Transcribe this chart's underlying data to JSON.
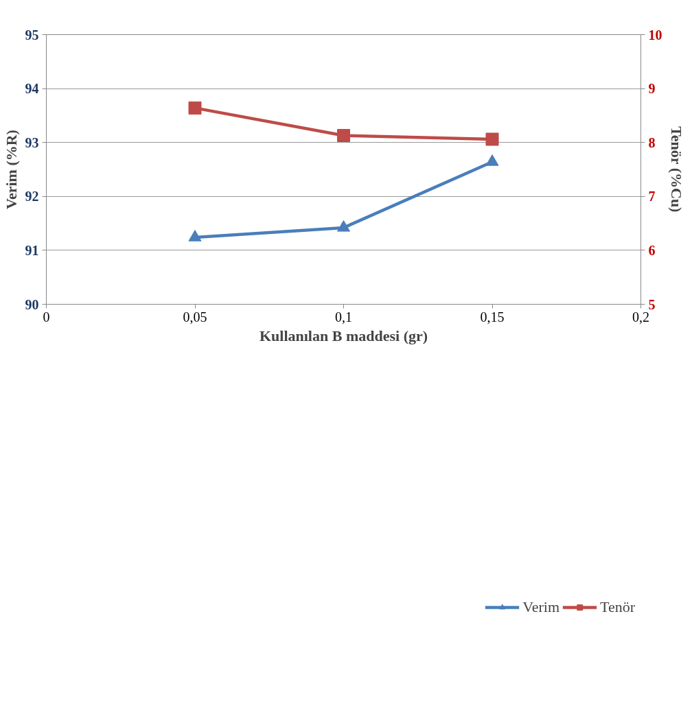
{
  "chart_data": {
    "type": "line",
    "xlabel": "Kullanılan B maddesi (gr)",
    "ylabel": "Verim (%R)",
    "y2label": "Tenör (%Cu)",
    "x": [
      0.05,
      0.1,
      0.15
    ],
    "series": [
      {
        "name": "Verim",
        "color": "#4a7ebb",
        "values": [
          91.24,
          91.42,
          92.64
        ],
        "marker": "triangle"
      },
      {
        "name": "Tenör",
        "color": "#be4b48",
        "values": [
          8.64,
          8.13,
          8.06
        ],
        "marker": "square",
        "axis": "y2"
      }
    ],
    "xlim": [
      0,
      0.2
    ],
    "xticks": [
      {
        "value": 0,
        "label": "0"
      },
      {
        "value": 0.05,
        "label": "0,05"
      },
      {
        "value": 0.1,
        "label": "0,1"
      },
      {
        "value": 0.15,
        "label": "0,15"
      },
      {
        "value": 0.2,
        "label": "0,2"
      }
    ],
    "ylim": [
      90,
      95
    ],
    "yticks": [
      90,
      91,
      92,
      93,
      94,
      95
    ],
    "y2lim": [
      5,
      10
    ],
    "y2ticks": [
      5,
      6,
      7,
      8,
      9,
      10
    ],
    "grid": "y",
    "legend": "bottom right",
    "line_style": "solid"
  }
}
